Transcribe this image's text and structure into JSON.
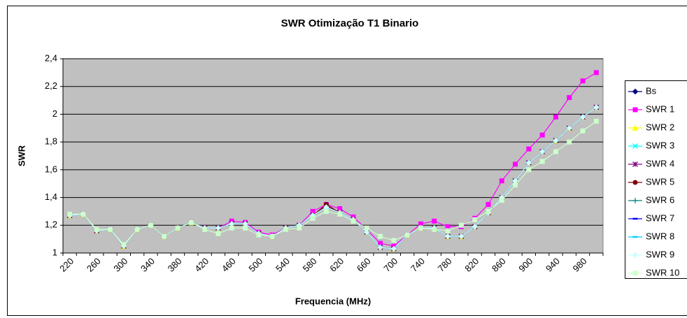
{
  "chart_data": {
    "type": "line",
    "title": "SWR Otimização T1 Binario",
    "x_label": "Frequencia (MHz)",
    "y_label": "SWR",
    "categories": [
      220,
      null,
      260,
      null,
      300,
      null,
      340,
      null,
      380,
      null,
      420,
      null,
      460,
      null,
      500,
      null,
      540,
      null,
      580,
      null,
      620,
      null,
      660,
      null,
      700,
      null,
      740,
      null,
      780,
      null,
      820,
      null,
      860,
      null,
      900,
      null,
      940,
      null,
      980,
      null
    ],
    "ylim": [
      1,
      2.4
    ],
    "yticks": [
      1,
      {
        "value": 1.2,
        "label": "1,2"
      },
      {
        "value": 1.4,
        "label": "1,4"
      },
      {
        "value": 1.6,
        "label": "1,6"
      },
      {
        "value": 1.8,
        "label": "1,8"
      },
      2,
      {
        "value": 2.2,
        "label": "2,2"
      },
      {
        "value": 2.4,
        "label": "2,4"
      }
    ],
    "grid": true,
    "legend": "right",
    "series": [
      {
        "name": "Bs",
        "color": "#000080",
        "marker": "diamond",
        "values": [
          1.27,
          1.28,
          1.16,
          1.17,
          1.05,
          1.17,
          1.2,
          1.12,
          1.18,
          1.22,
          1.18,
          1.18,
          1.21,
          1.21,
          1.14,
          1.12,
          1.18,
          1.2,
          1.27,
          1.33,
          1.29,
          1.24,
          1.15,
          1.04,
          1.03,
          1.13,
          1.18,
          1.18,
          1.12,
          1.12,
          1.19,
          1.29,
          1.4,
          1.52,
          1.65,
          1.73,
          1.81,
          1.9,
          1.98,
          2.05
        ]
      },
      {
        "name": "SWR 1",
        "color": "#ff00ff",
        "marker": "square",
        "values": [
          1.27,
          1.28,
          1.16,
          1.17,
          1.05,
          1.17,
          1.2,
          1.12,
          1.18,
          1.22,
          1.18,
          1.18,
          1.23,
          1.22,
          1.15,
          1.13,
          1.18,
          1.2,
          1.3,
          1.35,
          1.32,
          1.26,
          1.17,
          1.07,
          1.05,
          1.13,
          1.21,
          1.23,
          1.19,
          1.19,
          1.25,
          1.35,
          1.52,
          1.64,
          1.75,
          1.85,
          1.98,
          2.12,
          2.24,
          2.3
        ]
      },
      {
        "name": "SWR 2",
        "color": "#ffff00",
        "marker": "triangle",
        "values": [
          1.27,
          1.28,
          1.16,
          1.17,
          1.05,
          1.17,
          1.2,
          1.12,
          1.18,
          1.22,
          1.18,
          1.18,
          1.21,
          1.21,
          1.14,
          1.12,
          1.18,
          1.2,
          1.27,
          1.33,
          1.29,
          1.24,
          1.15,
          1.04,
          1.03,
          1.13,
          1.18,
          1.18,
          1.12,
          1.12,
          1.19,
          1.29,
          1.4,
          1.52,
          1.65,
          1.73,
          1.81,
          1.9,
          1.98,
          2.05
        ]
      },
      {
        "name": "SWR 3",
        "color": "#00ffff",
        "marker": "x",
        "values": [
          1.27,
          1.28,
          1.16,
          1.17,
          1.05,
          1.17,
          1.2,
          1.12,
          1.18,
          1.22,
          1.18,
          1.18,
          1.21,
          1.21,
          1.14,
          1.12,
          1.18,
          1.2,
          1.27,
          1.33,
          1.29,
          1.24,
          1.15,
          1.04,
          1.03,
          1.13,
          1.18,
          1.18,
          1.12,
          1.12,
          1.19,
          1.29,
          1.4,
          1.52,
          1.65,
          1.73,
          1.81,
          1.9,
          1.98,
          2.05
        ]
      },
      {
        "name": "SWR 4",
        "color": "#800080",
        "marker": "star",
        "values": [
          1.27,
          1.28,
          1.16,
          1.17,
          1.05,
          1.17,
          1.2,
          1.12,
          1.18,
          1.22,
          1.18,
          1.18,
          1.21,
          1.21,
          1.14,
          1.12,
          1.18,
          1.2,
          1.27,
          1.34,
          1.29,
          1.24,
          1.15,
          1.04,
          1.03,
          1.13,
          1.18,
          1.18,
          1.12,
          1.12,
          1.19,
          1.29,
          1.4,
          1.52,
          1.65,
          1.73,
          1.81,
          1.9,
          1.98,
          2.05
        ]
      },
      {
        "name": "SWR 5",
        "color": "#800000",
        "marker": "circle",
        "values": [
          1.27,
          1.28,
          1.16,
          1.17,
          1.05,
          1.17,
          1.2,
          1.12,
          1.18,
          1.22,
          1.18,
          1.18,
          1.21,
          1.21,
          1.14,
          1.12,
          1.18,
          1.2,
          1.27,
          1.35,
          1.29,
          1.24,
          1.15,
          1.04,
          1.03,
          1.13,
          1.18,
          1.18,
          1.12,
          1.12,
          1.19,
          1.29,
          1.4,
          1.52,
          1.65,
          1.73,
          1.81,
          1.9,
          1.98,
          2.05
        ]
      },
      {
        "name": "SWR 6",
        "color": "#008080",
        "marker": "plus",
        "values": [
          1.27,
          1.28,
          1.16,
          1.17,
          1.05,
          1.17,
          1.2,
          1.12,
          1.18,
          1.22,
          1.18,
          1.18,
          1.21,
          1.21,
          1.14,
          1.12,
          1.18,
          1.2,
          1.27,
          1.33,
          1.29,
          1.24,
          1.15,
          1.04,
          1.03,
          1.13,
          1.18,
          1.18,
          1.12,
          1.12,
          1.19,
          1.29,
          1.4,
          1.52,
          1.65,
          1.73,
          1.81,
          1.9,
          1.98,
          2.05
        ]
      },
      {
        "name": "SWR 7",
        "color": "#0000ff",
        "marker": "dash",
        "values": [
          1.27,
          1.28,
          1.16,
          1.17,
          1.05,
          1.17,
          1.2,
          1.12,
          1.18,
          1.22,
          1.18,
          1.18,
          1.21,
          1.21,
          1.14,
          1.12,
          1.18,
          1.2,
          1.27,
          1.33,
          1.29,
          1.24,
          1.15,
          1.04,
          1.03,
          1.13,
          1.18,
          1.18,
          1.12,
          1.12,
          1.19,
          1.29,
          1.4,
          1.52,
          1.65,
          1.73,
          1.81,
          1.9,
          1.98,
          2.05
        ]
      },
      {
        "name": "SWR 8",
        "color": "#00ccff",
        "marker": "dash",
        "values": [
          1.27,
          1.28,
          1.16,
          1.17,
          1.05,
          1.17,
          1.2,
          1.12,
          1.18,
          1.22,
          1.18,
          1.18,
          1.21,
          1.21,
          1.14,
          1.12,
          1.18,
          1.2,
          1.27,
          1.33,
          1.29,
          1.24,
          1.15,
          1.04,
          1.03,
          1.13,
          1.18,
          1.18,
          1.12,
          1.12,
          1.19,
          1.29,
          1.4,
          1.52,
          1.65,
          1.73,
          1.81,
          1.9,
          1.98,
          2.05
        ]
      },
      {
        "name": "SWR 9",
        "color": "#ccffff",
        "marker": "diamond",
        "values": [
          1.27,
          1.28,
          1.16,
          1.17,
          1.05,
          1.17,
          1.2,
          1.12,
          1.18,
          1.22,
          1.18,
          1.18,
          1.21,
          1.21,
          1.14,
          1.12,
          1.18,
          1.2,
          1.27,
          1.33,
          1.29,
          1.24,
          1.15,
          1.04,
          1.03,
          1.13,
          1.18,
          1.18,
          1.12,
          1.12,
          1.19,
          1.29,
          1.4,
          1.52,
          1.65,
          1.73,
          1.81,
          1.9,
          1.98,
          2.05
        ]
      },
      {
        "name": "SWR 10",
        "color": "#ccffcc",
        "marker": "square",
        "values": [
          1.28,
          1.28,
          1.17,
          1.17,
          1.06,
          1.17,
          1.2,
          1.12,
          1.18,
          1.22,
          1.17,
          1.14,
          1.18,
          1.18,
          1.13,
          1.12,
          1.17,
          1.18,
          1.25,
          1.3,
          1.28,
          1.23,
          1.18,
          1.12,
          1.09,
          1.13,
          1.18,
          1.17,
          1.16,
          1.2,
          1.24,
          1.3,
          1.38,
          1.49,
          1.6,
          1.66,
          1.73,
          1.8,
          1.88,
          1.95
        ]
      }
    ]
  }
}
